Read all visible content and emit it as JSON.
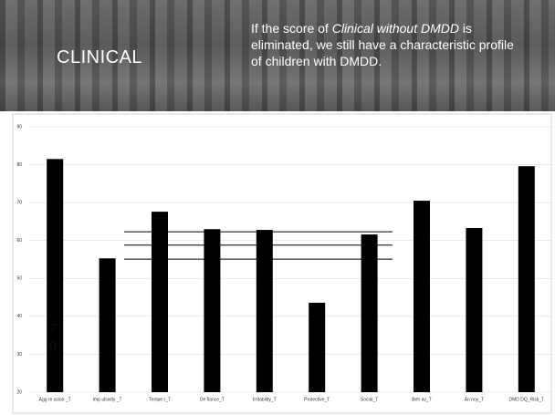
{
  "header": {
    "title": "CLINICAL",
    "text": [
      "If the score of ",
      "Clinical without DMDD",
      " is eliminated, we still have a characteristic profile of children with DMDD."
    ]
  },
  "chart_data": {
    "type": "bar",
    "categories": [
      "Agg re ssion _T",
      "Imp ulsivity _T",
      "Tempe r_T",
      "De fiance_T",
      "Irritability_T",
      "Protective_T",
      "Social_T",
      "Beh av_T",
      "An noy_T",
      "DMD DQ_Risk_T"
    ],
    "values": [
      81.5,
      55.3,
      67.6,
      63.0,
      62.8,
      43.6,
      61.6,
      70.5,
      63.3,
      79.6
    ],
    "color": "#000000",
    "ylim": [
      20,
      90
    ],
    "yticks": [
      20,
      30,
      40,
      50,
      60,
      70,
      80,
      90
    ],
    "grid": true,
    "reference_lines": [
      62.3,
      58.8,
      55.1
    ],
    "annotation": [
      "7",
      "0"
    ]
  }
}
